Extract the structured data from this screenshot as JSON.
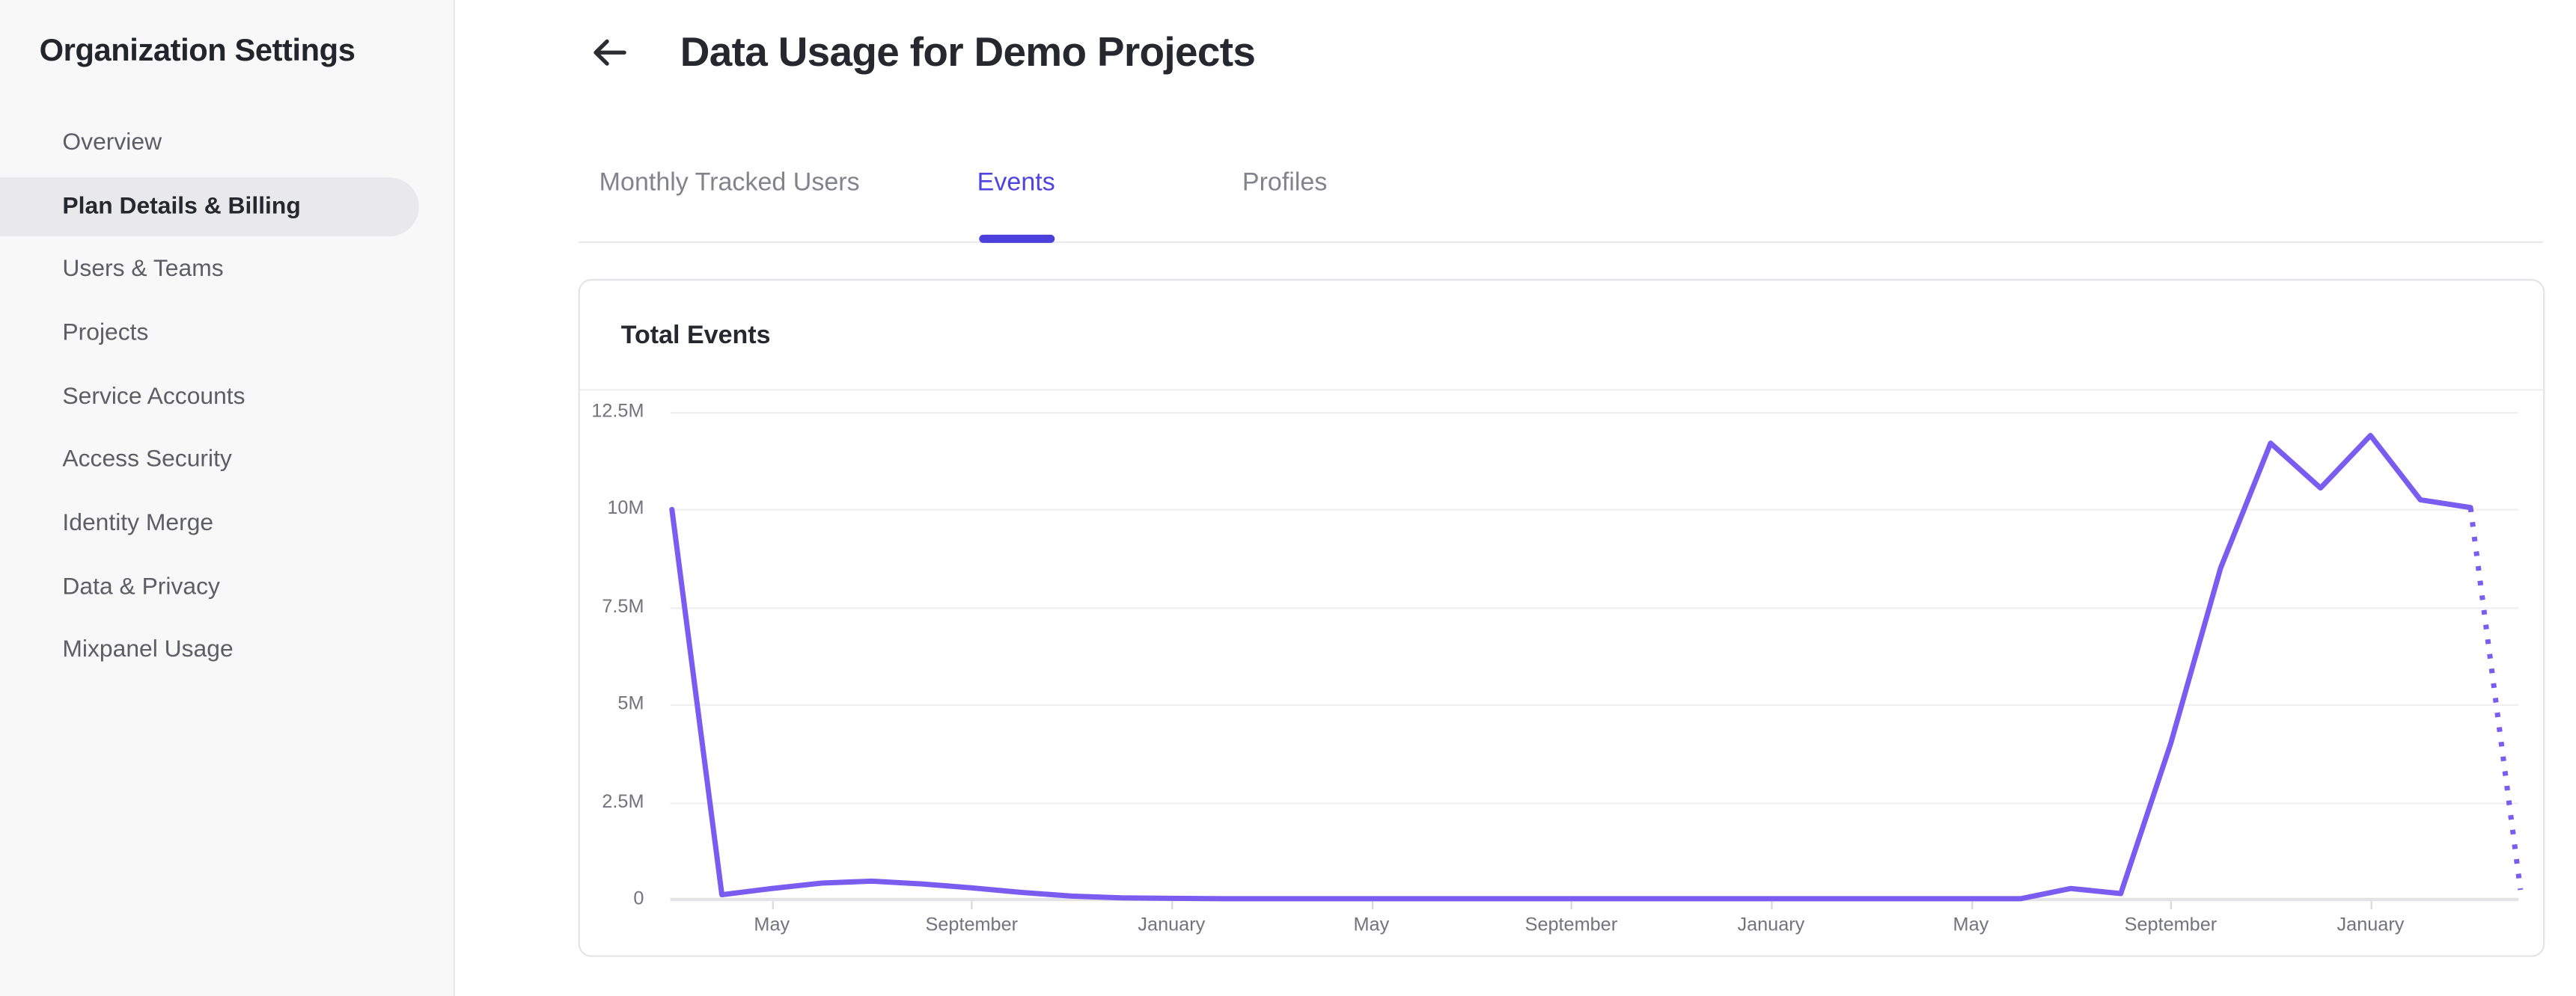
{
  "sidebar": {
    "title": "Organization Settings",
    "items": [
      {
        "label": "Overview",
        "active": false
      },
      {
        "label": "Plan Details & Billing",
        "active": true
      },
      {
        "label": "Users & Teams",
        "active": false
      },
      {
        "label": "Projects",
        "active": false
      },
      {
        "label": "Service Accounts",
        "active": false
      },
      {
        "label": "Access Security",
        "active": false
      },
      {
        "label": "Identity Merge",
        "active": false
      },
      {
        "label": "Data & Privacy",
        "active": false
      },
      {
        "label": "Mixpanel Usage",
        "active": false
      }
    ]
  },
  "header": {
    "title": "Data Usage for Demo Projects",
    "back_icon": "arrow-left-icon"
  },
  "tabs": [
    {
      "label": "Monthly Tracked Users",
      "active": false
    },
    {
      "label": "Events",
      "active": true
    },
    {
      "label": "Profiles",
      "active": false
    }
  ],
  "card": {
    "title": "Total Events"
  },
  "colors": {
    "accent_indigo": "#4f44e0",
    "line_purple": "#7a5cf0",
    "text_dark": "#26282f",
    "text_gray": "#73737d",
    "active_pill_bg": "#e9e9eb"
  },
  "chart_data": {
    "type": "line",
    "title": "Total Events",
    "xlabel": "",
    "ylabel": "",
    "ylim": [
      0,
      12500000
    ],
    "grid": "horizontal",
    "legend": "none",
    "y_ticks": [
      {
        "value": 0,
        "label": "0"
      },
      {
        "value": 2500000,
        "label": "2.5M"
      },
      {
        "value": 5000000,
        "label": "5M"
      },
      {
        "value": 7500000,
        "label": "7.5M"
      },
      {
        "value": 10000000,
        "label": "10M"
      },
      {
        "value": 12500000,
        "label": "12.5M"
      }
    ],
    "x_ticks": [
      {
        "month_index": 2,
        "label": "May"
      },
      {
        "month_index": 6,
        "label": "September"
      },
      {
        "month_index": 10,
        "label": "January"
      },
      {
        "month_index": 14,
        "label": "May"
      },
      {
        "month_index": 18,
        "label": "September"
      },
      {
        "month_index": 22,
        "label": "January"
      },
      {
        "month_index": 26,
        "label": "May"
      },
      {
        "month_index": 30,
        "label": "September"
      },
      {
        "month_index": 34,
        "label": "January"
      }
    ],
    "series": [
      {
        "name": "Total Events",
        "color": "#7a5cf0",
        "values": [
          10000000,
          120000,
          280000,
          420000,
          470000,
          400000,
          300000,
          180000,
          90000,
          40000,
          30000,
          20000,
          20000,
          20000,
          20000,
          20000,
          20000,
          20000,
          20000,
          20000,
          20000,
          20000,
          20000,
          20000,
          20000,
          20000,
          20000,
          20000,
          280000,
          150000,
          4000000,
          8500000,
          11700000,
          10550000,
          11900000,
          10250000,
          10050000
        ],
        "projection": {
          "months_ahead": 1,
          "value": 250000,
          "style": "dotted"
        }
      }
    ]
  }
}
